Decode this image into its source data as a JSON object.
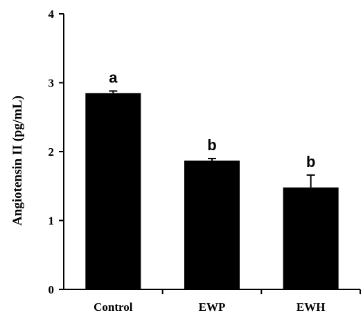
{
  "chart_data": {
    "type": "bar",
    "categories": [
      "Control",
      "EWP",
      "EWH"
    ],
    "values": [
      2.85,
      1.87,
      1.48
    ],
    "errors": [
      0.03,
      0.03,
      0.18
    ],
    "significance": [
      "a",
      "b",
      "b"
    ],
    "ylabel": "Angiotensin  II (pg/mL)",
    "xlabel": "",
    "ylim": [
      0,
      4
    ],
    "yticks": [
      0,
      1,
      2,
      3,
      4
    ],
    "grid": false,
    "bar_color": "#000000"
  }
}
